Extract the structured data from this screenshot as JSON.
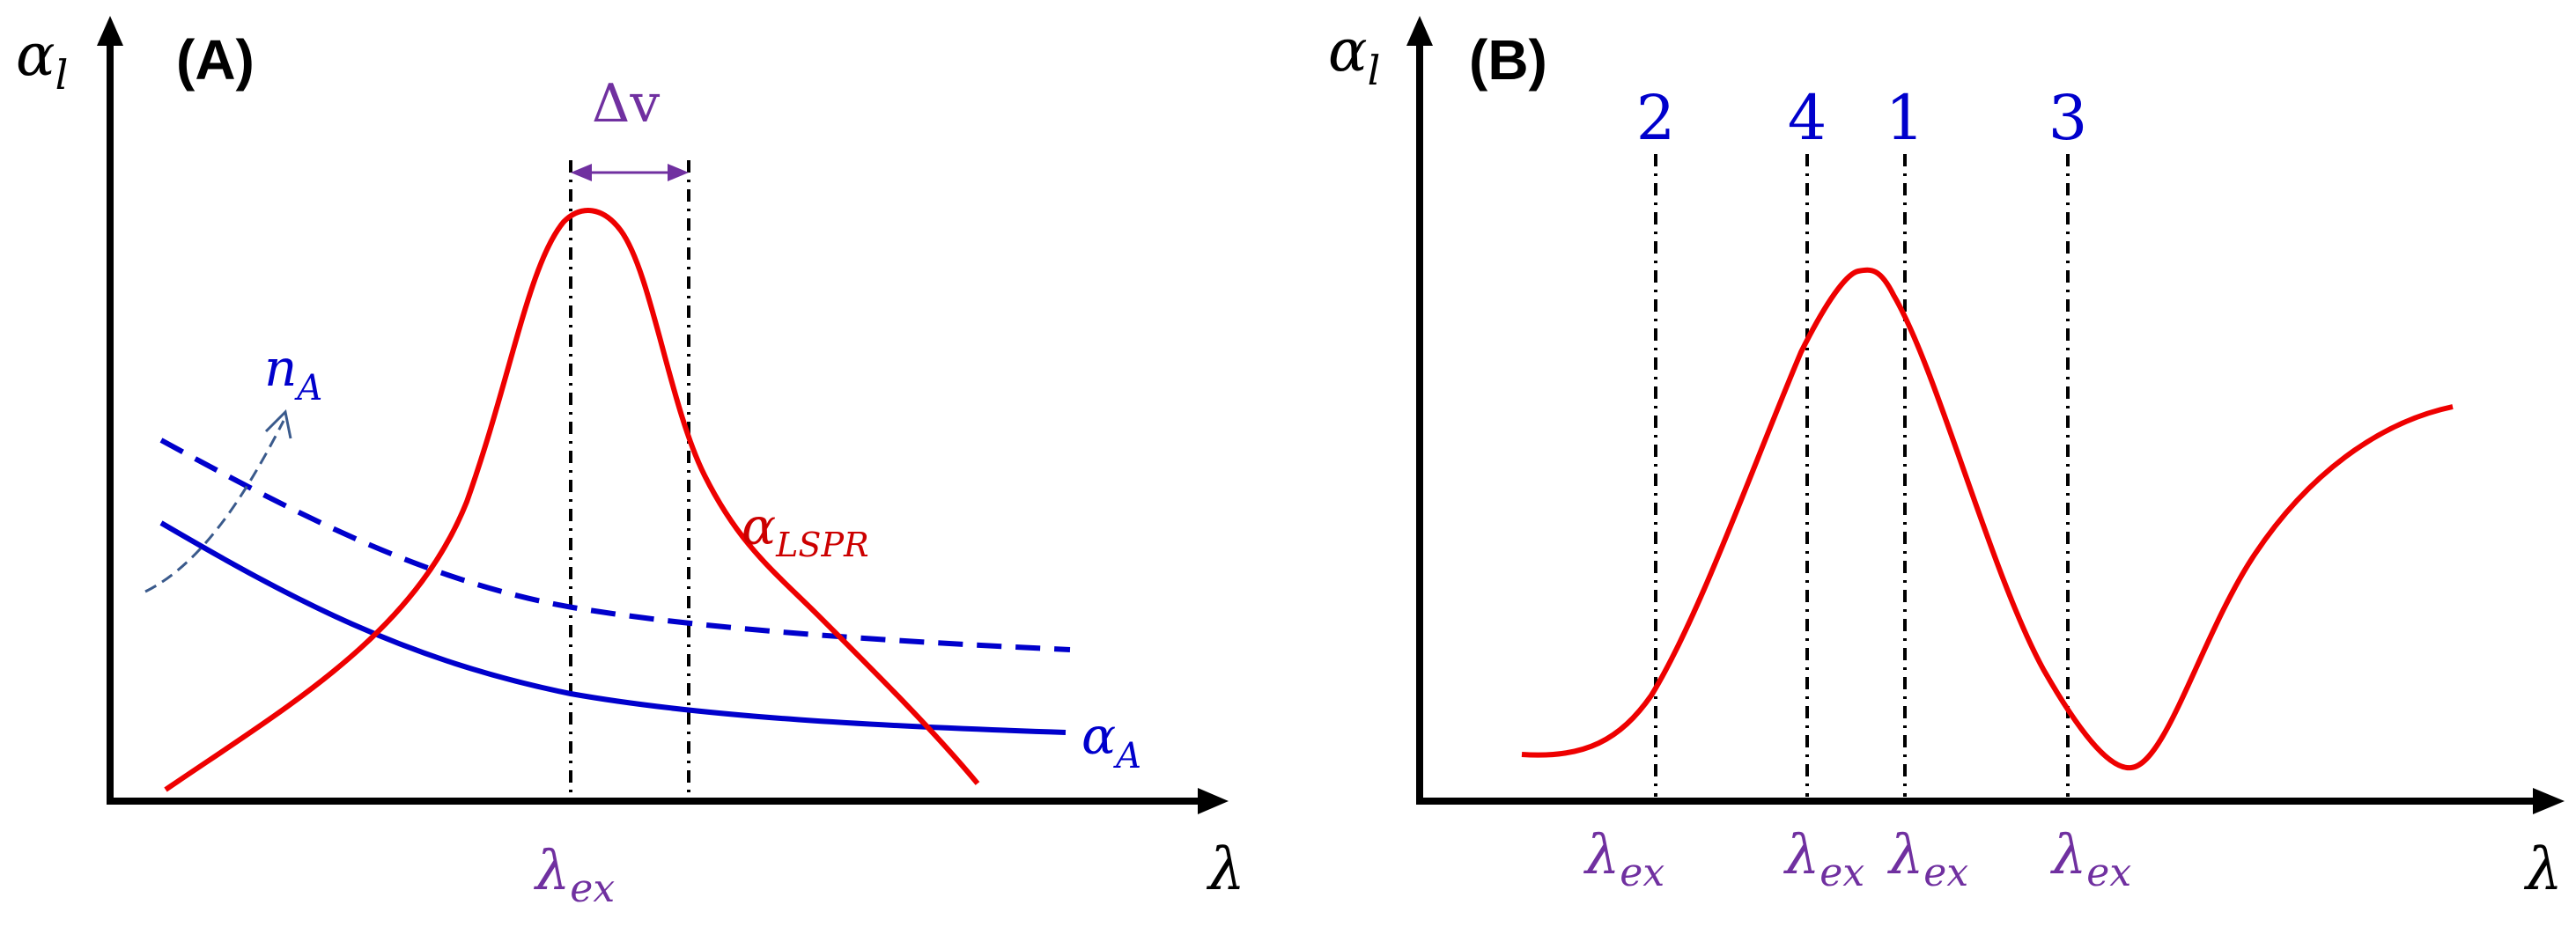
{
  "colors": {
    "axis": "#000000",
    "resonance": "#ee0000",
    "absorbance": "#0000cc",
    "dashed_absorbance": "#0000cc",
    "arrow_na": "#3a5a8c",
    "excitation": "#7030a0",
    "numbers": "#0000cc"
  },
  "panel_a": {
    "label": "(A)",
    "y_axis_label": {
      "base": "α",
      "sub": "l"
    },
    "x_axis_label": "λ",
    "delta_label": "Δv",
    "n_label": {
      "base": "n",
      "sub": "A"
    },
    "lspr_label": {
      "base": "α",
      "sub": "LSPR"
    },
    "alpha_a_label": {
      "base": "α",
      "sub": "A"
    },
    "excitation_label": {
      "base": "λ",
      "sub": "ex"
    }
  },
  "panel_b": {
    "label": "(B)",
    "y_axis_label": {
      "base": "α",
      "sub": "l"
    },
    "x_axis_label": "λ",
    "markers": [
      {
        "number": "2",
        "label_base": "λ",
        "label_sub": "ex"
      },
      {
        "number": "4",
        "label_base": "λ",
        "label_sub": "ex"
      },
      {
        "number": "1",
        "label_base": "λ",
        "label_sub": "ex"
      },
      {
        "number": "3",
        "label_base": "λ",
        "label_sub": "ex"
      }
    ]
  }
}
